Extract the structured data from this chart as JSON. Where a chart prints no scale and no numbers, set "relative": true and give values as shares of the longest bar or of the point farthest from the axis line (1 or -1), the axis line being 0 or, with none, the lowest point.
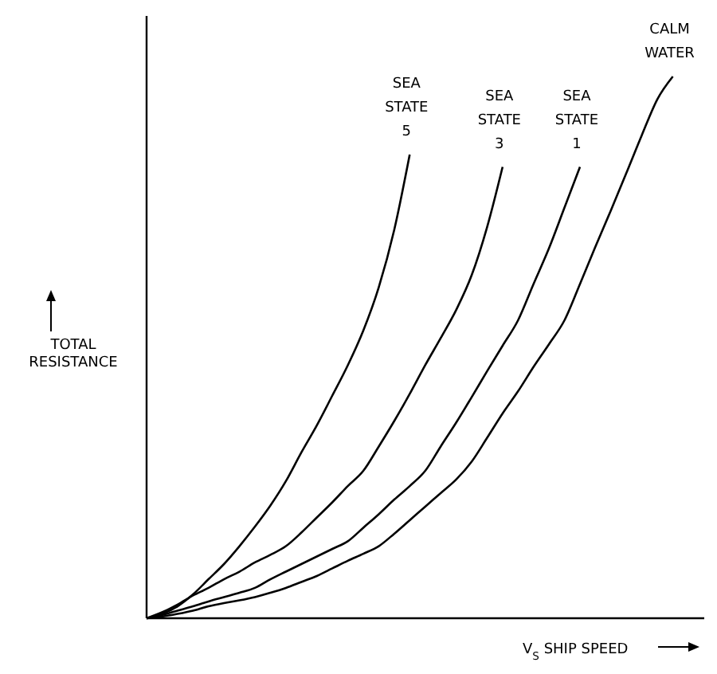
{
  "chart_data": {
    "type": "line",
    "relative": true,
    "xlabel": "V$_{S}$ SHIP SPEED",
    "ylabel": "TOTAL RESISTANCE",
    "categories": [
      null,
      null,
      null,
      null,
      null,
      null,
      null,
      null,
      null,
      null,
      null,
      null,
      null,
      null,
      null,
      null,
      null,
      null,
      null,
      null,
      null,
      null,
      null,
      null,
      null,
      null,
      null,
      null,
      null,
      null,
      null,
      null,
      null,
      null,
      null,
      null
    ],
    "series": [
      {
        "name": "SEA STATE 5",
        "color": "#000000",
        "values": [
          0,
          0.008,
          0.022,
          0.044,
          0.072,
          0.1,
          0.133,
          0.169,
          0.208,
          0.253,
          0.306,
          0.356,
          0.411,
          0.467,
          0.531,
          0.611,
          0.717,
          0.856,
          null,
          null,
          null,
          null,
          null,
          null,
          null,
          null,
          null,
          null,
          null,
          null,
          null,
          null,
          null,
          null,
          null,
          null
        ]
      },
      {
        "name": "SEA STATE 3",
        "color": "#000000",
        "values": [
          0,
          0.011,
          0.025,
          0.042,
          0.056,
          0.072,
          0.086,
          0.103,
          0.117,
          0.133,
          0.158,
          0.186,
          0.214,
          0.244,
          0.272,
          0.317,
          0.364,
          0.414,
          0.467,
          0.517,
          0.569,
          0.633,
          0.722,
          0.833,
          null,
          null,
          null,
          null,
          null,
          null,
          null,
          null,
          null,
          null,
          null,
          null
        ]
      },
      {
        "name": "SEA STATE 1",
        "color": "#000000",
        "values": [
          0,
          0.006,
          0.014,
          0.022,
          0.031,
          0.039,
          0.047,
          0.056,
          0.072,
          0.086,
          0.1,
          0.114,
          0.128,
          0.142,
          0.167,
          0.192,
          0.219,
          0.244,
          0.272,
          0.317,
          0.361,
          0.408,
          0.456,
          0.503,
          0.55,
          0.617,
          0.683,
          0.758,
          0.833,
          null,
          null,
          null,
          null,
          null,
          null,
          null
        ]
      },
      {
        "name": "CALM WATER",
        "color": "#000000",
        "values": [
          0,
          0.003,
          0.008,
          0.014,
          0.022,
          0.028,
          0.033,
          0.039,
          0.047,
          0.056,
          0.067,
          0.078,
          0.092,
          0.106,
          0.119,
          0.133,
          0.156,
          0.181,
          0.206,
          0.231,
          0.256,
          0.289,
          0.333,
          0.378,
          0.419,
          0.464,
          0.506,
          0.55,
          0.617,
          0.686,
          0.753,
          0.822,
          0.892,
          0.958,
          1,
          null
        ]
      }
    ]
  }
}
